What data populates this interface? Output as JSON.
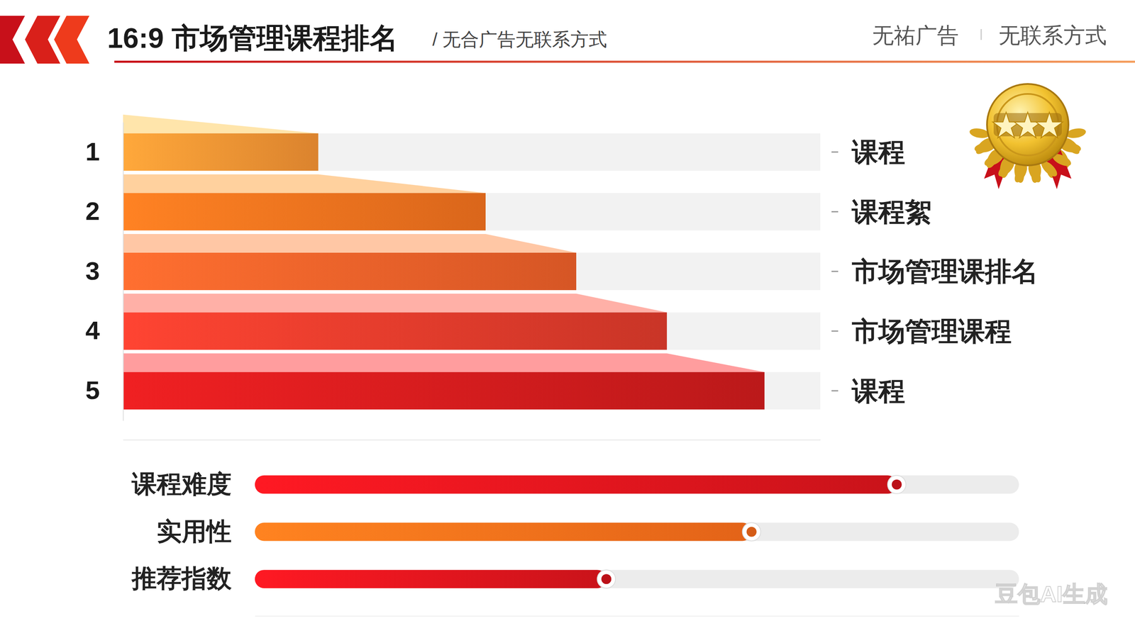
{
  "header": {
    "title": "16:9 市场管理课程排名",
    "subtitle": "/ 无合广告无联系方式",
    "tags": [
      "无祐广告",
      "无联系方式"
    ],
    "watermark": "豆包AI生成"
  },
  "chart_data": [
    {
      "type": "bar",
      "orientation": "horizontal",
      "categories": [
        "1",
        "2",
        "3",
        "4",
        "5"
      ],
      "annotations": [
        "课程",
        "课程絮",
        "市场管理课排名",
        "市场管理课程",
        "课程"
      ],
      "values": [
        28,
        52,
        65,
        78,
        92
      ],
      "colors": [
        "#f89434",
        "#f7731f",
        "#f2622a",
        "#e43c2c",
        "#d41c1e"
      ],
      "xlim": [
        0,
        100
      ],
      "tick_labels": "y"
    },
    {
      "type": "bar",
      "orientation": "horizontal",
      "categories": [
        "课程难度",
        "实用性",
        "推荐指数"
      ],
      "values": [
        84,
        65,
        46
      ],
      "colors": [
        "#d8141c",
        "#f46a1a",
        "#d8141c"
      ],
      "xlim": [
        0,
        100
      ],
      "tick_labels": "y"
    }
  ]
}
